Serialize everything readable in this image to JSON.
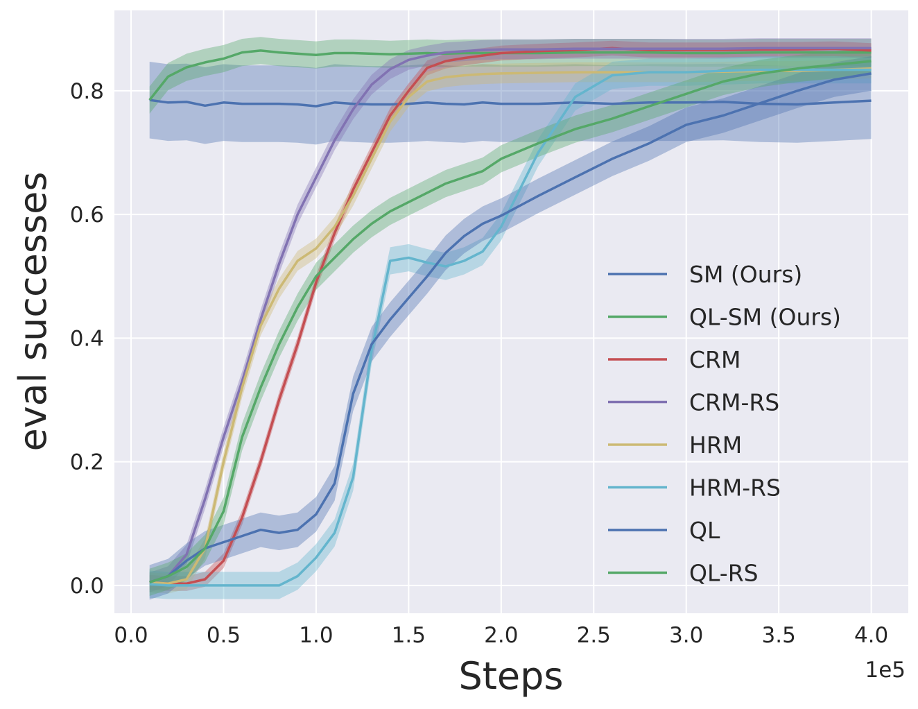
{
  "chart_data": {
    "type": "line",
    "xlabel": "Steps",
    "ylabel": "eval successes",
    "x_scale_label": "1e5",
    "xlim": [
      -0.09,
      4.2
    ],
    "ylim": [
      -0.045,
      0.93
    ],
    "xticks": [
      0.0,
      0.5,
      1.0,
      1.5,
      2.0,
      2.5,
      3.0,
      3.5,
      4.0
    ],
    "xtick_labels": [
      "0.0",
      "0.5",
      "1.0",
      "1.5",
      "2.0",
      "2.5",
      "3.0",
      "3.5",
      "4.0"
    ],
    "yticks": [
      0.0,
      0.2,
      0.4,
      0.6,
      0.8
    ],
    "ytick_labels": [
      "0.0",
      "0.2",
      "0.4",
      "0.6",
      "0.8"
    ],
    "grid": true,
    "legend_position": "lower right",
    "x": [
      0.1,
      0.2,
      0.3,
      0.4,
      0.5,
      0.6,
      0.7,
      0.8,
      0.9,
      1.0,
      1.1,
      1.2,
      1.3,
      1.4,
      1.5,
      1.6,
      1.7,
      1.8,
      1.9,
      2.0,
      2.2,
      2.4,
      2.6,
      2.8,
      3.0,
      3.2,
      3.4,
      3.6,
      3.8,
      4.0
    ],
    "series": [
      {
        "name": "SM (Ours)",
        "color": "#4c72b0",
        "band": 0.062,
        "values": [
          0.785,
          0.781,
          0.782,
          0.776,
          0.781,
          0.779,
          0.779,
          0.779,
          0.778,
          0.775,
          0.781,
          0.779,
          0.778,
          0.778,
          0.779,
          0.781,
          0.779,
          0.778,
          0.781,
          0.779,
          0.779,
          0.781,
          0.779,
          0.781,
          0.781,
          0.782,
          0.779,
          0.778,
          0.781,
          0.784
        ]
      },
      {
        "name": "QL-SM (Ours)",
        "color": "#55a868",
        "band": 0.022,
        "values": [
          0.785,
          0.823,
          0.838,
          0.846,
          0.852,
          0.862,
          0.865,
          0.862,
          0.86,
          0.858,
          0.861,
          0.861,
          0.86,
          0.859,
          0.86,
          0.861,
          0.86,
          0.861,
          0.861,
          0.861,
          0.861,
          0.862,
          0.862,
          0.862,
          0.861,
          0.861,
          0.862,
          0.862,
          0.862,
          0.862
        ]
      },
      {
        "name": "CRM",
        "color": "#c44e52",
        "band": 0.012,
        "values": [
          0.005,
          0.003,
          0.003,
          0.01,
          0.04,
          0.11,
          0.2,
          0.3,
          0.39,
          0.49,
          0.57,
          0.64,
          0.7,
          0.76,
          0.8,
          0.837,
          0.848,
          0.853,
          0.857,
          0.861,
          0.864,
          0.866,
          0.869,
          0.866,
          0.866,
          0.866,
          0.867,
          0.867,
          0.868,
          0.865
        ]
      },
      {
        "name": "CRM-RS",
        "color": "#8172b2",
        "band": 0.016,
        "values": [
          0.005,
          0.015,
          0.05,
          0.14,
          0.24,
          0.33,
          0.43,
          0.52,
          0.6,
          0.66,
          0.72,
          0.77,
          0.81,
          0.835,
          0.85,
          0.857,
          0.862,
          0.864,
          0.866,
          0.867,
          0.867,
          0.868,
          0.868,
          0.868,
          0.868,
          0.868,
          0.869,
          0.869,
          0.869,
          0.869
        ]
      },
      {
        "name": "HRM",
        "color": "#ccb974",
        "band": 0.016,
        "values": [
          0.005,
          0.003,
          0.01,
          0.06,
          0.2,
          0.32,
          0.42,
          0.48,
          0.525,
          0.545,
          0.58,
          0.63,
          0.69,
          0.75,
          0.79,
          0.815,
          0.822,
          0.825,
          0.827,
          0.828,
          0.829,
          0.83,
          0.83,
          0.83,
          0.83,
          0.831,
          0.832,
          0.832,
          0.834,
          0.836
        ]
      },
      {
        "name": "HRM-RS",
        "color": "#64b5cd",
        "band": 0.022,
        "values": [
          0.002,
          0.0,
          0.0,
          0.0,
          0.0,
          0.0,
          0.0,
          0.0,
          0.015,
          0.045,
          0.085,
          0.175,
          0.38,
          0.525,
          0.53,
          0.522,
          0.516,
          0.525,
          0.54,
          0.58,
          0.7,
          0.79,
          0.825,
          0.83,
          0.83,
          0.832,
          0.834,
          0.834,
          0.834,
          0.834
        ]
      },
      {
        "name": "QL",
        "color": "#4c72b0",
        "band": 0.028,
        "values": [
          0.005,
          0.015,
          0.04,
          0.06,
          0.07,
          0.08,
          0.09,
          0.085,
          0.09,
          0.115,
          0.165,
          0.31,
          0.39,
          0.43,
          0.465,
          0.5,
          0.538,
          0.565,
          0.585,
          0.598,
          0.63,
          0.66,
          0.69,
          0.715,
          0.745,
          0.76,
          0.78,
          0.8,
          0.818,
          0.828
        ]
      },
      {
        "name": "QL-RS",
        "color": "#55a868",
        "band": 0.022,
        "values": [
          0.005,
          0.015,
          0.03,
          0.06,
          0.12,
          0.24,
          0.32,
          0.39,
          0.45,
          0.5,
          0.53,
          0.56,
          0.585,
          0.605,
          0.62,
          0.635,
          0.65,
          0.66,
          0.67,
          0.69,
          0.715,
          0.738,
          0.755,
          0.775,
          0.795,
          0.815,
          0.828,
          0.836,
          0.842,
          0.848
        ]
      }
    ]
  }
}
